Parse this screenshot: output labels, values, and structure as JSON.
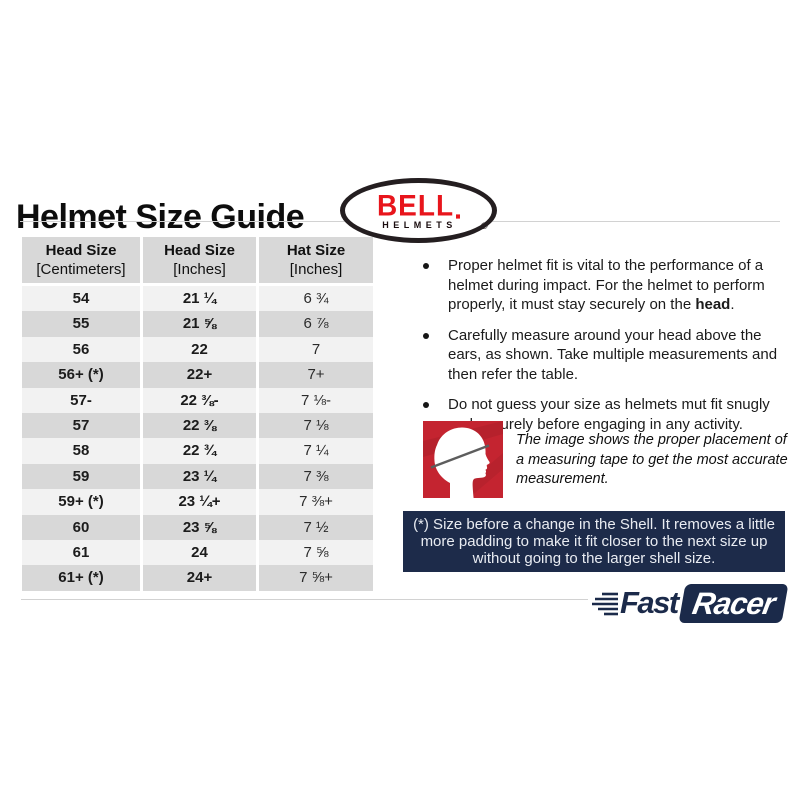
{
  "page": {
    "title": "Helmet Size Guide"
  },
  "bell_logo": {
    "name": "BELL",
    "sub": "HELMETS",
    "reg": "®",
    "red": "#e8151c"
  },
  "table": {
    "headers": [
      {
        "line1": "Head Size",
        "line2": "[Centimeters]"
      },
      {
        "line1": "Head Size",
        "line2": "[Inches]"
      },
      {
        "line1": "Hat Size",
        "line2": "[Inches]"
      }
    ],
    "rows": [
      [
        "54",
        "21 ¼",
        "6 ¾"
      ],
      [
        "55",
        "21 ⅝",
        "6 ⅞"
      ],
      [
        "56",
        "22",
        "7"
      ],
      [
        "56+ (*)",
        "22+",
        "7+"
      ],
      [
        "57-",
        "22 ⅜-",
        "7 ⅛-"
      ],
      [
        "57",
        "22 ⅜",
        "7 ⅛"
      ],
      [
        "58",
        "22 ¾",
        "7 ¼"
      ],
      [
        "59",
        "23 ¼",
        "7 ⅜"
      ],
      [
        "59+ (*)",
        "23 ¼+",
        "7 ⅜+"
      ],
      [
        "60",
        "23 ⅝",
        "7 ½"
      ],
      [
        "61",
        "24",
        "7 ⅝"
      ],
      [
        "61+ (*)",
        "24+",
        "7 ⅝+"
      ]
    ]
  },
  "bullets": [
    {
      "segments": [
        {
          "t": "Proper helmet fit is vital to the performance of a helmet during impact. For the helmet to perform properly, it must stay securely on the ",
          "b": false
        },
        {
          "t": "head",
          "b": true
        },
        {
          "t": ".",
          "b": false
        }
      ]
    },
    {
      "segments": [
        {
          "t": "Carefully measure around your head above the ears, as shown. Take multiple measurements and then refer the table.",
          "b": false
        }
      ]
    },
    {
      "segments": [
        {
          "t": "Do not guess your size as helmets mut fit snugly and securely before engaging in any activity.",
          "b": false
        }
      ]
    }
  ],
  "caption": {
    "text": "The image shows the proper placement of a measuring tape to get the most accurate measurement."
  },
  "note": {
    "lines": [
      "(*) Size before a change in the Shell. It removes a little",
      "more padding to make it fit closer to the next size up",
      "without going to the larger shell size."
    ]
  },
  "footer_logo": {
    "fast": "Fast",
    "racer": "Racer"
  },
  "colors": {
    "navy": "#1d2b4a",
    "bell_red": "#e8151c",
    "icon_red": "#c42430",
    "icon_red_dark": "#ab1f2a",
    "row_light": "#f2f2f2",
    "row_dark": "#d8d8d8",
    "divider": "#d2d2d2"
  }
}
